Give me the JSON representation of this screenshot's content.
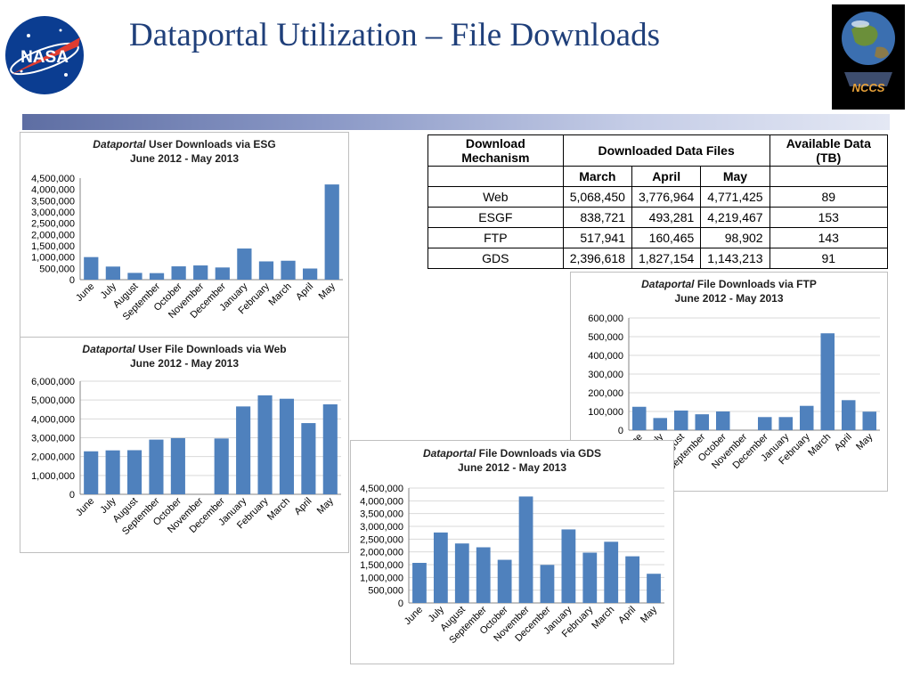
{
  "slide": {
    "title": "Dataportal Utilization – File Downloads",
    "logo_left_text": "NASA",
    "logo_right_text": "NCCS"
  },
  "table": {
    "h_mechanism": "Download Mechanism",
    "h_files": "Downloaded Data Files",
    "h_available": "Available Data (TB)",
    "months": [
      "March",
      "April",
      "May"
    ],
    "rows": [
      {
        "mechanism": "Web",
        "march": "5,068,450",
        "april": "3,776,964",
        "may": "4,771,425",
        "tb": "89"
      },
      {
        "mechanism": "ESGF",
        "march": "838,721",
        "april": "493,281",
        "may": "4,219,467",
        "tb": "153"
      },
      {
        "mechanism": "FTP",
        "march": "517,941",
        "april": "160,465",
        "may": "98,902",
        "tb": "143"
      },
      {
        "mechanism": "GDS",
        "march": "2,396,618",
        "april": "1,827,154",
        "may": "1,143,213",
        "tb": "91"
      }
    ]
  },
  "colors": {
    "bar": "#4f81bd",
    "title": "#1f3f7a",
    "grid": "#d9d9d9"
  },
  "chart_data": [
    {
      "type": "bar",
      "title_em": "Dataportal",
      "title_rest": " User Downloads via ESG",
      "subtitle": "June 2012 - May 2013",
      "categories": [
        "June",
        "July",
        "August",
        "September",
        "October",
        "November",
        "December",
        "January",
        "February",
        "March",
        "April",
        "May"
      ],
      "values": [
        1000000,
        580000,
        300000,
        290000,
        590000,
        630000,
        540000,
        1380000,
        810000,
        838721,
        493281,
        4219467
      ],
      "ylim": [
        0,
        4500000
      ],
      "yticks": [
        0,
        500000,
        1000000,
        1500000,
        2000000,
        2500000,
        3000000,
        3500000,
        4000000,
        4500000
      ],
      "grid": false
    },
    {
      "type": "bar",
      "title_em": "Dataportal",
      "title_rest": " User File Downloads via Web",
      "subtitle": "June 2012 -  May 2013",
      "categories": [
        "June",
        "July",
        "August",
        "September",
        "October",
        "November",
        "December",
        "January",
        "February",
        "March",
        "April",
        "May"
      ],
      "values": [
        2280000,
        2330000,
        2340000,
        2900000,
        2980000,
        0,
        2960000,
        4660000,
        5250000,
        5068450,
        3776964,
        4771425
      ],
      "ylim": [
        0,
        6000000
      ],
      "yticks": [
        0,
        1000000,
        2000000,
        3000000,
        4000000,
        5000000,
        6000000
      ],
      "grid": true
    },
    {
      "type": "bar",
      "title_em": "Dataportal",
      "title_rest": " File Downloads via FTP",
      "subtitle": "June 2012 - May 2013",
      "categories": [
        "June",
        "July",
        "August",
        "September",
        "October",
        "November",
        "December",
        "January",
        "February",
        "March",
        "April",
        "May"
      ],
      "values": [
        125000,
        65000,
        105000,
        85000,
        100000,
        0,
        70000,
        70000,
        130000,
        517941,
        160465,
        98902
      ],
      "ylim": [
        0,
        600000
      ],
      "yticks": [
        0,
        100000,
        200000,
        300000,
        400000,
        500000,
        600000
      ],
      "grid": true
    },
    {
      "type": "bar",
      "title_em": "Dataportal",
      "title_rest": " File Downloads via GDS",
      "subtitle": "June 2012 - May 2013",
      "categories": [
        "June",
        "July",
        "August",
        "September",
        "October",
        "November",
        "December",
        "January",
        "February",
        "March",
        "April",
        "May"
      ],
      "values": [
        1570000,
        2760000,
        2330000,
        2180000,
        1690000,
        4170000,
        1490000,
        2880000,
        1970000,
        2396618,
        1827154,
        1143213
      ],
      "ylim": [
        0,
        4500000
      ],
      "yticks": [
        0,
        500000,
        1000000,
        1500000,
        2000000,
        2500000,
        3000000,
        3500000,
        4000000,
        4500000
      ],
      "grid": true
    }
  ]
}
